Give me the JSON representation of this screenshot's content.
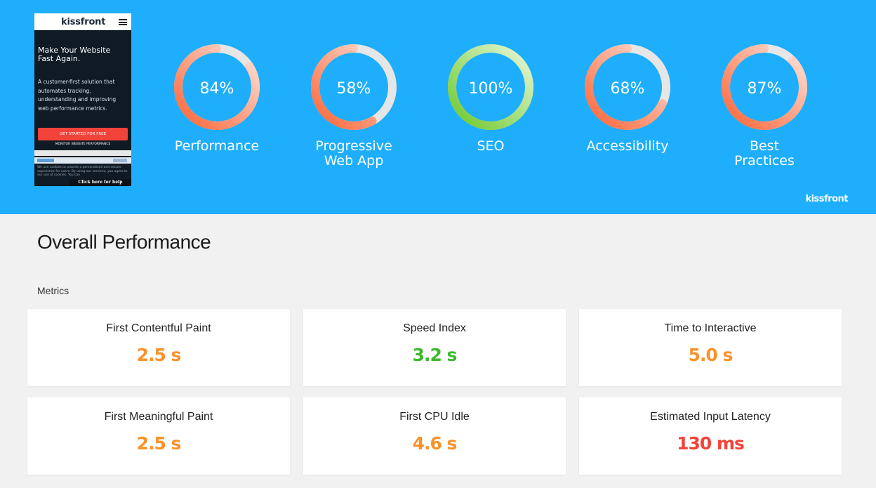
{
  "preview": {
    "logo": "kissfront",
    "headline": "Make Your Website Fast Again.",
    "copy": "A customer-first solution that automates tracking, understanding and improving web performance metrics.",
    "cta": "GET STARTED FOR FREE",
    "sub": "MONITOR WEBSITE PERFORMANCE",
    "cookie": "We use cookies to provide a personalized and secure experience for users. By using our services, you agree to our use of cookies. You can",
    "help": "Click here for help"
  },
  "gauges": [
    {
      "label": "Performance",
      "value_text": "84%",
      "value": 84,
      "color": "#ff6436"
    },
    {
      "label": "Progressive Web App",
      "value_text": "58%",
      "value": 58,
      "color": "#ff6436"
    },
    {
      "label": "SEO",
      "value_text": "100%",
      "value": 100,
      "color": "#6cc82a"
    },
    {
      "label": "Accessibility",
      "value_text": "68%",
      "value": 68,
      "color": "#ff6436"
    },
    {
      "label": "Best Practices",
      "value_text": "87%",
      "value": 87,
      "color": "#ff6436"
    }
  ],
  "brand": "kissfront",
  "section_title": "Overall Performance",
  "metrics_label": "Metrics",
  "metrics": [
    {
      "title": "First Contentful Paint",
      "value": "2.5 s",
      "color": "#f7932a"
    },
    {
      "title": "Speed Index",
      "value": "3.2 s",
      "color": "#3db82e"
    },
    {
      "title": "Time to Interactive",
      "value": "5.0 s",
      "color": "#f7932a"
    },
    {
      "title": "First Meaningful Paint",
      "value": "2.5 s",
      "color": "#f7932a"
    },
    {
      "title": "First CPU Idle",
      "value": "4.6 s",
      "color": "#f7932a"
    },
    {
      "title": "Estimated Input Latency",
      "value": "130 ms",
      "color": "#f2433a"
    }
  ]
}
